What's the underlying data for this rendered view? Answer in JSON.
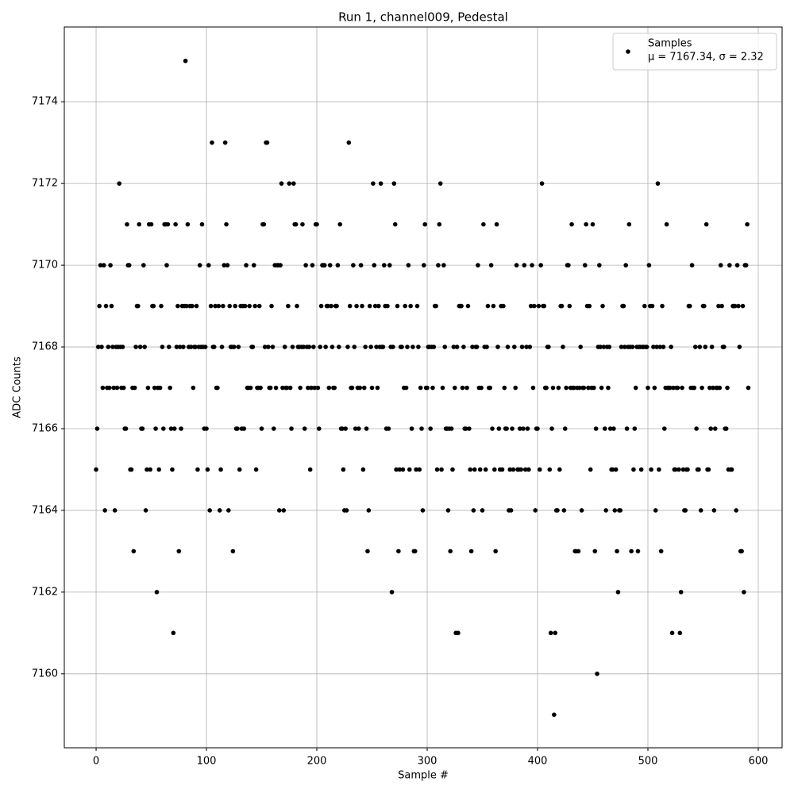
{
  "chart_data": {
    "type": "scatter",
    "title": "Run 1, channel009, Pedestal",
    "x_label": "Sample #",
    "y_label": "ADC Counts",
    "xlim": [
      -28.8,
      621.6
    ],
    "ylim": [
      7158.19,
      7175.83
    ],
    "xticks": [
      0,
      100,
      200,
      300,
      400,
      500,
      600
    ],
    "yticks": [
      7160,
      7162,
      7164,
      7166,
      7168,
      7170,
      7172,
      7174
    ],
    "grid": true,
    "legend_position": "upper right",
    "series": [
      {
        "name": "Samples",
        "legend_note": "μ = 7167.34, σ = 2.32",
        "color": "#000000",
        "x": [
          0,
          1,
          2,
          3,
          4,
          5,
          6,
          7,
          8,
          9,
          10,
          11,
          12,
          13,
          14,
          15,
          16,
          17,
          18,
          19,
          20,
          21,
          22,
          23,
          24,
          25,
          26,
          27,
          28,
          29,
          30,
          31,
          32,
          33,
          34,
          35,
          36,
          37,
          38,
          39,
          40,
          41,
          42,
          43,
          44,
          45,
          46,
          47,
          48,
          49,
          50,
          51,
          52,
          53,
          54,
          55,
          56,
          57,
          58,
          59,
          60,
          61,
          62,
          63,
          64,
          65,
          66,
          67,
          68,
          69,
          70,
          71,
          72,
          73,
          74,
          75,
          76,
          77,
          78,
          79,
          80,
          81,
          82,
          83,
          84,
          85,
          86,
          87,
          88,
          89,
          90,
          91,
          92,
          93,
          94,
          95,
          96,
          97,
          98,
          99,
          100,
          101,
          102,
          103,
          104,
          105,
          106,
          107,
          108,
          109,
          110,
          111,
          112,
          113,
          114,
          115,
          116,
          117,
          118,
          119,
          120,
          121,
          122,
          123,
          124,
          125,
          126,
          127,
          128,
          129,
          130,
          131,
          132,
          133,
          134,
          135,
          136,
          137,
          138,
          139,
          140,
          141,
          142,
          143,
          144,
          145,
          146,
          147,
          148,
          149,
          150,
          151,
          152,
          153,
          154,
          155,
          156,
          157,
          158,
          159,
          160,
          161,
          162,
          163,
          164,
          165,
          166,
          167,
          168,
          169,
          170,
          171,
          172,
          173,
          174,
          175,
          176,
          177,
          178,
          179,
          180,
          181,
          182,
          183,
          184,
          185,
          186,
          187,
          188,
          189,
          190,
          191,
          192,
          193,
          194,
          195,
          196,
          197,
          198,
          199,
          200,
          201,
          202,
          203,
          204,
          205,
          206,
          207,
          208,
          209,
          210,
          211,
          212,
          213,
          214,
          215,
          216,
          217,
          218,
          219,
          220,
          221,
          222,
          223,
          224,
          225,
          226,
          227,
          228,
          229,
          230,
          231,
          232,
          233,
          234,
          235,
          236,
          237,
          238,
          239,
          240,
          241,
          242,
          243,
          244,
          245,
          246,
          247,
          248,
          249,
          250,
          251,
          252,
          253,
          254,
          255,
          256,
          257,
          258,
          259,
          260,
          261,
          262,
          263,
          264,
          265,
          266,
          267,
          268,
          269,
          270,
          271,
          272,
          273,
          274,
          275,
          276,
          277,
          278,
          279,
          280,
          281,
          282,
          283,
          284,
          285,
          286,
          287,
          288,
          289,
          290,
          291,
          292,
          293,
          294,
          295,
          296,
          297,
          298,
          299,
          300,
          301,
          302,
          303,
          304,
          305,
          306,
          307,
          308,
          309,
          310,
          311,
          312,
          313,
          314,
          315,
          316,
          317,
          318,
          319,
          320,
          321,
          322,
          323,
          324,
          325,
          326,
          327,
          328,
          329,
          330,
          331,
          332,
          333,
          334,
          335,
          336,
          337,
          338,
          339,
          340,
          341,
          342,
          343,
          344,
          345,
          346,
          347,
          348,
          349,
          350,
          351,
          352,
          353,
          354,
          355,
          356,
          357,
          358,
          359,
          360,
          361,
          362,
          363,
          364,
          365,
          366,
          367,
          368,
          369,
          370,
          371,
          372,
          373,
          374,
          375,
          376,
          377,
          378,
          379,
          380,
          381,
          382,
          383,
          384,
          385,
          386,
          387,
          388,
          389,
          390,
          391,
          392,
          393,
          394,
          395,
          396,
          397,
          398,
          399,
          400,
          401,
          402,
          403,
          404,
          405,
          406,
          407,
          408,
          409,
          410,
          411,
          412,
          413,
          414,
          415,
          416,
          417,
          418,
          419,
          420,
          421,
          422,
          423,
          424,
          425,
          426,
          427,
          428,
          429,
          430,
          431,
          432,
          433,
          434,
          435,
          436,
          437,
          438,
          439,
          440,
          441,
          442,
          443,
          444,
          445,
          446,
          447,
          448,
          449,
          450,
          451,
          452,
          453,
          454,
          455,
          456,
          457,
          458,
          459,
          460,
          461,
          462,
          463,
          464,
          465,
          466,
          467,
          468,
          469,
          470,
          471,
          472,
          473,
          474,
          475,
          476,
          477,
          478,
          479,
          480,
          481,
          482,
          483,
          484,
          485,
          486,
          487,
          488,
          489,
          490,
          491,
          492,
          493,
          494,
          495,
          496,
          497,
          498,
          499,
          500,
          501,
          502,
          503,
          504,
          505,
          506,
          507,
          508,
          509,
          510,
          511,
          512,
          513,
          514,
          515,
          516,
          517,
          518,
          519,
          520,
          521,
          522,
          523,
          524,
          525,
          526,
          527,
          528,
          529,
          530,
          531,
          532,
          533,
          534,
          535,
          536,
          537,
          538,
          539,
          540,
          541,
          542,
          543,
          544,
          545,
          546,
          547,
          548,
          549,
          550,
          551,
          552,
          553,
          554,
          555,
          556,
          557,
          558,
          559,
          560,
          561,
          562,
          563,
          564,
          565,
          566,
          567,
          568,
          569,
          570,
          571,
          572,
          573,
          574,
          575,
          576,
          577,
          578,
          579,
          580,
          581,
          582,
          583,
          584,
          585,
          586,
          587,
          588,
          589,
          590,
          591
        ],
        "values": [
          7165,
          7166,
          7168,
          7169,
          7170,
          7168,
          7167,
          7170,
          7164,
          7169,
          7167,
          7168,
          7167,
          7170,
          7169,
          7168,
          7167,
          7164,
          7168,
          7167,
          7168,
          7172,
          7168,
          7167,
          7168,
          7167,
          7166,
          7166,
          7171,
          7170,
          7170,
          7165,
          7165,
          7167,
          7163,
          7167,
          7168,
          7169,
          7169,
          7171,
          7168,
          7166,
          7166,
          7170,
          7168,
          7164,
          7165,
          7167,
          7171,
          7165,
          7171,
          7169,
          7169,
          7167,
          7166,
          7162,
          7167,
          7165,
          7167,
          7169,
          7168,
          7166,
          7171,
          7171,
          7170,
          7171,
          7168,
          7167,
          7166,
          7165,
          7161,
          7166,
          7171,
          7168,
          7169,
          7163,
          7168,
          7166,
          7169,
          7168,
          7169,
          7175,
          7169,
          7171,
          7168,
          7169,
          7168,
          7169,
          7167,
          7168,
          7168,
          7169,
          7165,
          7168,
          7170,
          7168,
          7171,
          7168,
          7166,
          7168,
          7166,
          7165,
          7170,
          7164,
          7169,
          7173,
          7168,
          7168,
          7169,
          7167,
          7167,
          7169,
          7164,
          7165,
          7168,
          7169,
          7170,
          7173,
          7171,
          7170,
          7164,
          7169,
          7168,
          7168,
          7163,
          7168,
          7169,
          7166,
          7166,
          7168,
          7165,
          7169,
          7166,
          7169,
          7166,
          7169,
          7170,
          7167,
          7167,
          7169,
          7167,
          7168,
          7168,
          7170,
          7169,
          7165,
          7167,
          7167,
          7169,
          7167,
          7166,
          7171,
          7171,
          7168,
          7173,
          7173,
          7168,
          7167,
          7167,
          7169,
          7168,
          7166,
          7170,
          7167,
          7170,
          7170,
          7164,
          7170,
          7172,
          7167,
          7164,
          7168,
          7167,
          7167,
          7169,
          7172,
          7167,
          7166,
          7168,
          7172,
          7171,
          7171,
          7169,
          7168,
          7168,
          7167,
          7168,
          7171,
          7168,
          7166,
          7170,
          7168,
          7167,
          7168,
          7165,
          7167,
          7170,
          7168,
          7167,
          7171,
          7171,
          7167,
          7166,
          7168,
          7169,
          7170,
          7170,
          7170,
          7168,
          7169,
          7169,
          7167,
          7170,
          7169,
          7168,
          7167,
          7167,
          7169,
          7169,
          7170,
          7168,
          7171,
          7166,
          7166,
          7165,
          7164,
          7166,
          7164,
          7168,
          7173,
          7169,
          7167,
          7167,
          7170,
          7168,
          7166,
          7169,
          7167,
          7166,
          7167,
          7170,
          7169,
          7165,
          7167,
          7168,
          7166,
          7163,
          7164,
          7169,
          7168,
          7167,
          7172,
          7170,
          7169,
          7168,
          7167,
          7169,
          7168,
          7172,
          7168,
          7168,
          7170,
          7169,
          7166,
          7169,
          7166,
          7170,
          7168,
          7162,
          7168,
          7172,
          7171,
          7165,
          7169,
          7163,
          7165,
          7168,
          7168,
          7165,
          7167,
          7169,
          7167,
          7168,
          7170,
          7165,
          7169,
          7166,
          7168,
          7163,
          7163,
          7165,
          7169,
          7168,
          7165,
          7167,
          7166,
          7164,
          7170,
          7171,
          7167,
          7167,
          7168,
          7168,
          7166,
          7168,
          7167,
          7168,
          7169,
          7169,
          7165,
          7170,
          7171,
          7172,
          7165,
          7167,
          7170,
          7168,
          7166,
          7166,
          7164,
          7166,
          7163,
          7166,
          7165,
          7168,
          7167,
          7161,
          7168,
          7161,
          7169,
          7169,
          7169,
          7167,
          7168,
          7166,
          7166,
          7167,
          7169,
          7166,
          7165,
          7163,
          7168,
          7164,
          7165,
          7168,
          7168,
          7170,
          7167,
          7165,
          7167,
          7164,
          7171,
          7168,
          7165,
          7168,
          7169,
          7167,
          7167,
          7170,
          7166,
          7169,
          7165,
          7163,
          7171,
          7168,
          7166,
          7165,
          7169,
          7165,
          7169,
          7167,
          7166,
          7166,
          7168,
          7164,
          7165,
          7164,
          7166,
          7165,
          7168,
          7167,
          7170,
          7165,
          7165,
          7166,
          7165,
          7168,
          7166,
          7170,
          7165,
          7168,
          7166,
          7165,
          7168,
          7169,
          7170,
          7167,
          7169,
          7164,
          7166,
          7166,
          7169,
          7165,
          7170,
          7172,
          7169,
          7169,
          7167,
          7167,
          7168,
          7168,
          7165,
          7161,
          7166,
          7167,
          7159,
          7161,
          7164,
          7164,
          7167,
          7165,
          7169,
          7169,
          7168,
          7164,
          7166,
          7167,
          7170,
          7170,
          7169,
          7167,
          7171,
          7167,
          7167,
          7163,
          7163,
          7167,
          7163,
          7167,
          7168,
          7164,
          7167,
          7167,
          7170,
          7171,
          7169,
          7167,
          7169,
          7165,
          7167,
          7171,
          7167,
          7163,
          7166,
          7160,
          7168,
          7170,
          7168,
          7167,
          7169,
          7168,
          7166,
          7164,
          7168,
          7167,
          7168,
          7166,
          7165,
          7165,
          7166,
          7164,
          7165,
          7163,
          7162,
          7164,
          7164,
          7168,
          7169,
          7169,
          7168,
          7170,
          7166,
          7168,
          7171,
          7168,
          7163,
          7168,
          7165,
          7166,
          7167,
          7168,
          7163,
          7168,
          7168,
          7165,
          7168,
          7168,
          7169,
          7168,
          7168,
          7167,
          7170,
          7169,
          7165,
          7169,
          7168,
          7167,
          7164,
          7168,
          7172,
          7165,
          7168,
          7163,
          7169,
          7168,
          7166,
          7167,
          7171,
          7167,
          7167,
          7167,
          7168,
          7161,
          7167,
          7165,
          7165,
          7167,
          7167,
          7165,
          7161,
          7162,
          7167,
          7165,
          7164,
          7164,
          7165,
          7165,
          7169,
          7169,
          7167,
          7170,
          7167,
          7167,
          7168,
          7166,
          7165,
          7165,
          7168,
          7164,
          7167,
          7169,
          7169,
          7168,
          7171,
          7165,
          7165,
          7167,
          7166,
          7168,
          7167,
          7164,
          7166,
          7167,
          7167,
          7169,
          7167,
          7170,
          7169,
          7168,
          7168,
          7166,
          7166,
          7167,
          7165,
          7170,
          7165,
          7165,
          7169,
          7169,
          7169,
          7164,
          7170,
          7169,
          7168,
          7163,
          7163,
          7169,
          7162,
          7170,
          7170,
          7171,
          7167
        ]
      }
    ]
  }
}
